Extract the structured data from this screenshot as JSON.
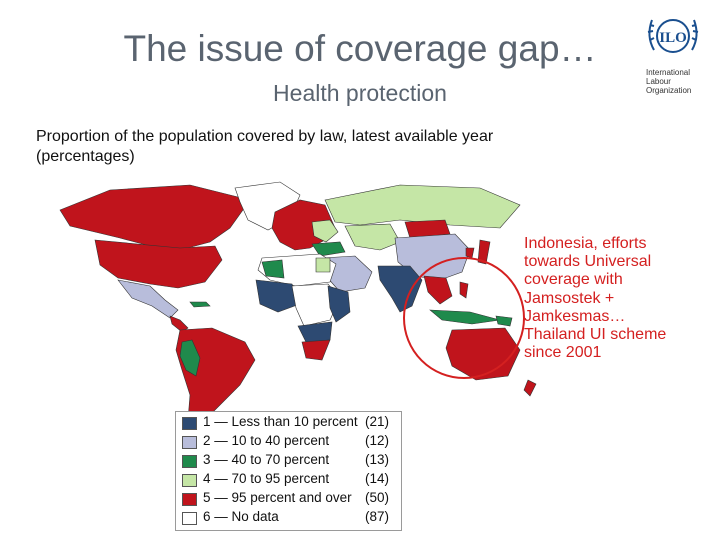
{
  "header": {
    "title": "The issue of coverage gap…",
    "subtitle": "Health protection"
  },
  "logo": {
    "monogram": "ILO",
    "org_lines": [
      "International",
      "Labour",
      "Organization"
    ]
  },
  "map": {
    "caption_line1": "Proportion of the population covered by law, latest available year",
    "caption_line2": "(percentages)",
    "highlight_region": "Southeast Asia (Indonesia, Thailand)"
  },
  "annotation": {
    "lines": [
      "Indonesia, efforts",
      "towards Universal",
      "coverage with",
      "Jamsostek +",
      "Jamkesmas…",
      "Thailand UI scheme",
      "since 2001"
    ],
    "color": "#d42020"
  },
  "legend": {
    "items": [
      {
        "label": "1 — Less than 10 percent",
        "count": "(21)",
        "color": "#2d4a72"
      },
      {
        "label": "2 — 10 to 40 percent",
        "count": "(12)",
        "color": "#b8bddb"
      },
      {
        "label": "3 — 40 to 70 percent",
        "count": "(13)",
        "color": "#1f8a4c"
      },
      {
        "label": "4 — 70 to 95 percent",
        "count": "(14)",
        "color": "#c5e6a6"
      },
      {
        "label": "5 — 95 percent and over",
        "count": "(50)",
        "color": "#c0141c"
      },
      {
        "label": "6 — No data",
        "count": "(87)",
        "color": "#ffffff"
      }
    ]
  }
}
